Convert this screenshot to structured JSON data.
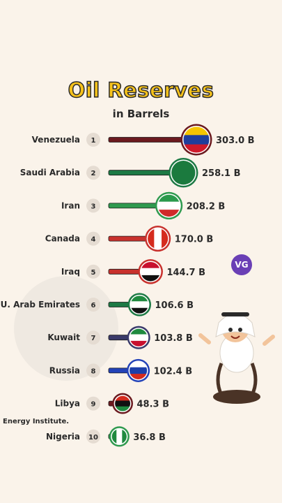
{
  "title": "Oil Reserves",
  "subtitle": "in Barrels",
  "source": "Energy Institute.",
  "logo_text": "VG",
  "chart_data": {
    "type": "bar",
    "orientation": "horizontal",
    "title": "Oil Reserves",
    "subtitle": "in Barrels",
    "categories": [
      "Venezuela",
      "Saudi Arabia",
      "Iran",
      "Canada",
      "Iraq",
      "U. Arab Emirates",
      "Kuwait",
      "Russia",
      "Libya",
      "Nigeria"
    ],
    "ranks": [
      "1",
      "2",
      "3",
      "4",
      "5",
      "6",
      "7",
      "8",
      "9",
      "10"
    ],
    "values": [
      303.0,
      258.1,
      208.2,
      170.0,
      144.7,
      106.6,
      103.8,
      102.4,
      48.3,
      36.8
    ],
    "value_labels": [
      "303.0 B",
      "258.1 B",
      "208.2 B",
      "170.0 B",
      "144.7 B",
      "106.6 B",
      "103.8 B",
      "102.4 B",
      "48.3 B",
      "36.8 B"
    ],
    "bar_colors": [
      "#6b1a1f",
      "#1d7a45",
      "#2f9a4f",
      "#c8312d",
      "#c8312d",
      "#1d7a45",
      "#3a3a6a",
      "#2342b8",
      "#6b1a1f",
      "#2f9a4f"
    ],
    "flag_icons": [
      "venezuela-flag-icon",
      "saudi-arabia-flag-icon",
      "iran-flag-icon",
      "canada-flag-icon",
      "iraq-flag-icon",
      "uae-flag-icon",
      "kuwait-flag-icon",
      "russia-flag-icon",
      "libya-flag-icon",
      "nigeria-flag-icon"
    ],
    "grid": false,
    "legend": "none"
  }
}
